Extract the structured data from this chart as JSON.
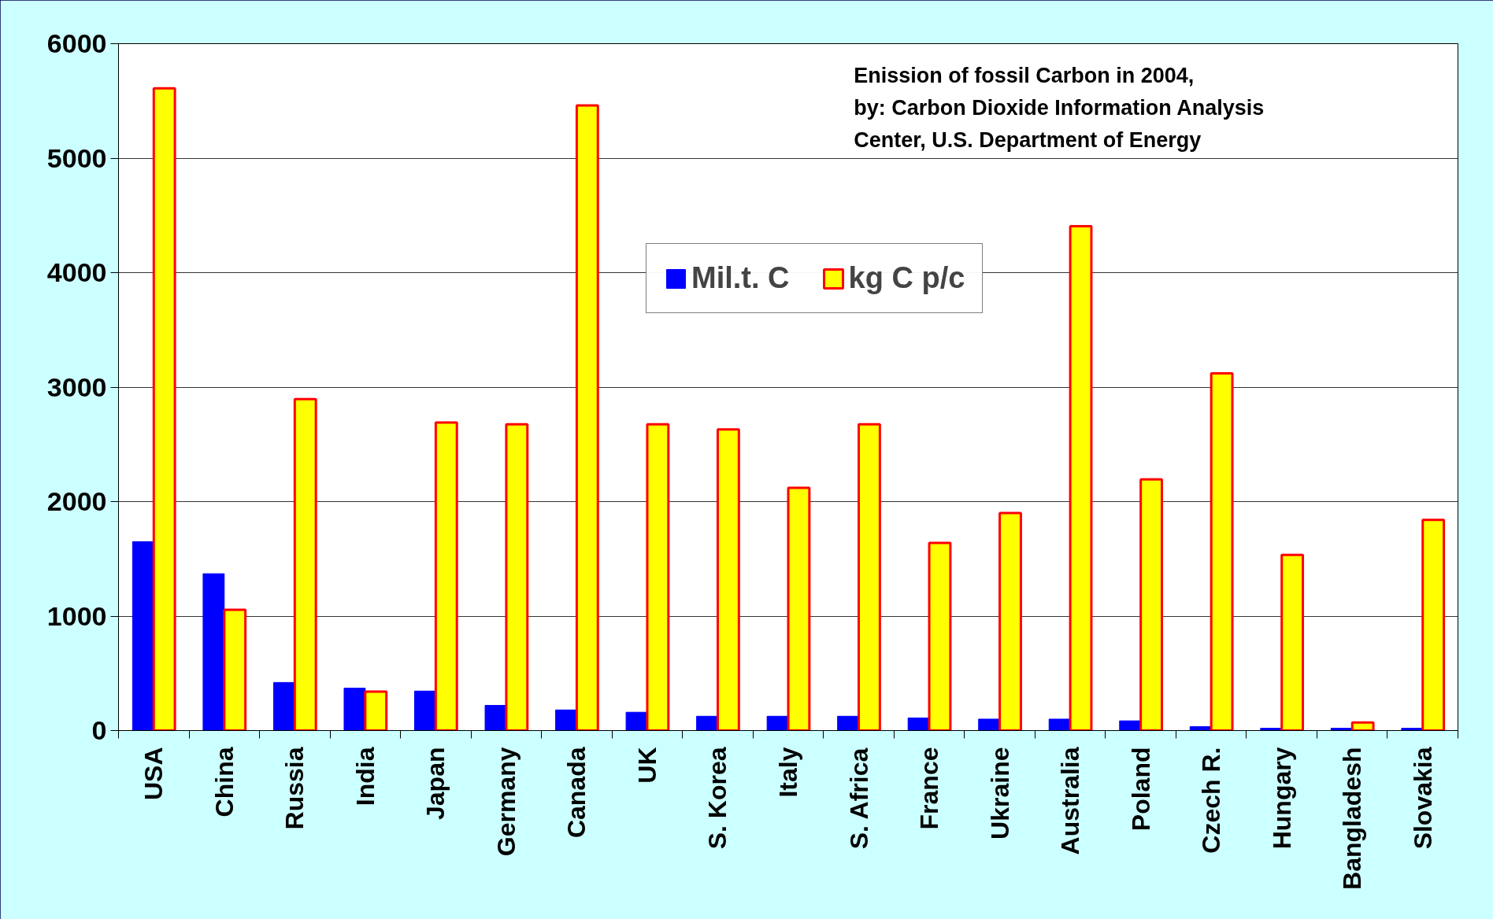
{
  "chart_data": {
    "type": "bar",
    "categories": [
      "USA",
      "China",
      "Russia",
      "India",
      "Japan",
      "Germany",
      "Canada",
      "UK",
      "S. Korea",
      "Italy",
      "S. Africa",
      "France",
      "Ukraine",
      "Australia",
      "Poland",
      "Czech R.",
      "Hungary",
      "Bangladesh",
      "Slovakia"
    ],
    "series": [
      {
        "name": "Mil.t. C",
        "color": "#0000ff",
        "values": [
          1650,
          1370,
          420,
          370,
          345,
          220,
          180,
          160,
          125,
          125,
          125,
          110,
          100,
          100,
          85,
          35,
          20,
          20,
          20
        ]
      },
      {
        "name": "kg C p/c",
        "color": "#ffff00",
        "values": [
          5610,
          1055,
          2895,
          340,
          2690,
          2675,
          5460,
          2675,
          2630,
          2120,
          2675,
          1640,
          1900,
          4405,
          2195,
          3120,
          1535,
          70,
          1840
        ]
      }
    ],
    "annotations": [
      "Enission of fossil Carbon in 2004,",
      "by: Carbon Dioxide Information Analysis",
      "Center, U.S. Department of Energy"
    ],
    "ylim": [
      0,
      6000
    ],
    "yticks": [
      0,
      1000,
      2000,
      3000,
      4000,
      5000,
      6000
    ],
    "grid": "y",
    "legend": "top"
  }
}
